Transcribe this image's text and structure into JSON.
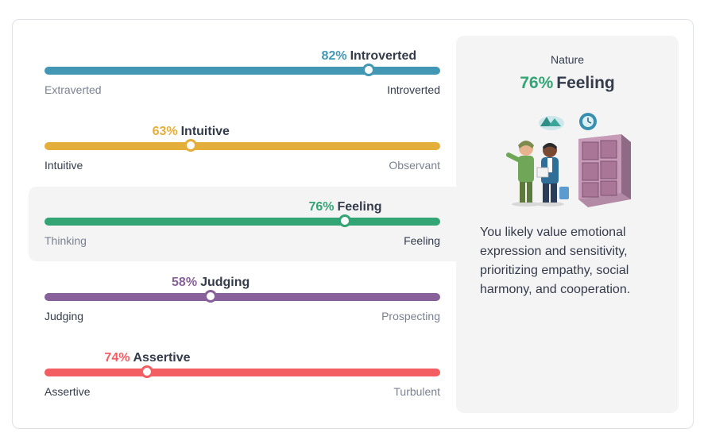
{
  "traits": [
    {
      "percent": "82%",
      "name": "Introverted",
      "left_label": "Extraverted",
      "right_label": "Introverted",
      "value": 82,
      "direction": "right",
      "color": "#4298b4",
      "highlighted": false
    },
    {
      "percent": "63%",
      "name": "Intuitive",
      "left_label": "Intuitive",
      "right_label": "Observant",
      "value": 63,
      "direction": "left",
      "color": "#e4ae3a",
      "highlighted": false
    },
    {
      "percent": "76%",
      "name": "Feeling",
      "left_label": "Thinking",
      "right_label": "Feeling",
      "value": 76,
      "direction": "right",
      "color": "#33a474",
      "highlighted": true
    },
    {
      "percent": "58%",
      "name": "Judging",
      "left_label": "Judging",
      "right_label": "Prospecting",
      "value": 58,
      "direction": "left",
      "color": "#88619a",
      "highlighted": false
    },
    {
      "percent": "74%",
      "name": "Assertive",
      "left_label": "Assertive",
      "right_label": "Turbulent",
      "value": 74,
      "direction": "left",
      "color": "#f25e62",
      "highlighted": false
    }
  ],
  "panel": {
    "label": "Nature",
    "percent": "76%",
    "trait": "Feeling",
    "description": "You likely value emotional expression and sensitivity, prioritizing empathy, social harmony, and cooperation.",
    "illustration": "two-people-beside-lockers-illustration"
  }
}
